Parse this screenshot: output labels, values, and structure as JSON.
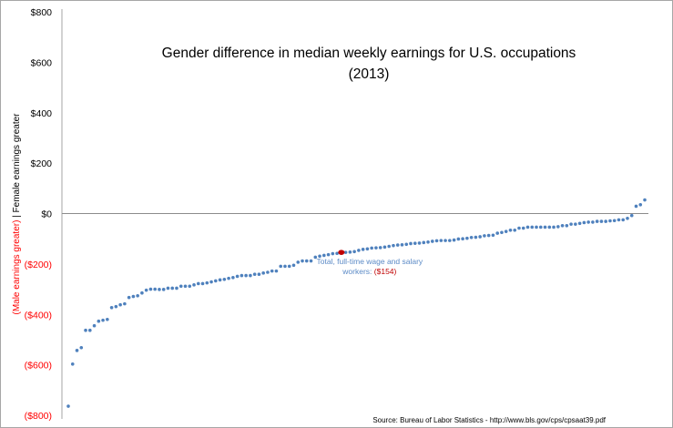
{
  "chart_data": {
    "type": "scatter",
    "title_line1": "Gender difference in median weekly earnings  for U.S. occupations",
    "title_line2": "(2013)",
    "ylabel_male": "(Male earnings greater)",
    "ylabel_sep": " | ",
    "ylabel_female": "Female earnings greater",
    "ylim": [
      -800,
      800
    ],
    "yticks": [
      800,
      600,
      400,
      200,
      0,
      -200,
      -400,
      -600,
      -800
    ],
    "ytick_labels": [
      "$800",
      "$600",
      "$400",
      "$200",
      "$0",
      "($200)",
      "($400)",
      "($600)",
      "($800)"
    ],
    "grid": false,
    "values": [
      -764,
      -597,
      -543,
      -532,
      -463,
      -463,
      -445,
      -427,
      -423,
      -420,
      -373,
      -369,
      -362,
      -358,
      -333,
      -329,
      -326,
      -315,
      -304,
      -300,
      -300,
      -301,
      -301,
      -296,
      -296,
      -296,
      -288,
      -288,
      -288,
      -283,
      -278,
      -278,
      -275,
      -271,
      -267,
      -263,
      -261,
      -257,
      -254,
      -249,
      -246,
      -246,
      -246,
      -241,
      -241,
      -236,
      -233,
      -228,
      -228,
      -209,
      -209,
      -209,
      -205,
      -193,
      -188,
      -188,
      -188,
      -173,
      -169,
      -166,
      -163,
      -159,
      -158,
      -154,
      -154,
      -153,
      -151,
      -146,
      -142,
      -140,
      -137,
      -136,
      -135,
      -133,
      -130,
      -127,
      -125,
      -124,
      -122,
      -119,
      -118,
      -117,
      -115,
      -113,
      -110,
      -108,
      -107,
      -107,
      -107,
      -105,
      -101,
      -100,
      -98,
      -95,
      -94,
      -92,
      -88,
      -87,
      -86,
      -78,
      -75,
      -71,
      -66,
      -66,
      -58,
      -58,
      -54,
      -54,
      -54,
      -54,
      -54,
      -54,
      -54,
      -52,
      -48,
      -48,
      -42,
      -42,
      -39,
      -36,
      -34,
      -34,
      -31,
      -31,
      -31,
      -29,
      -28,
      -25,
      -25,
      -19,
      -8,
      29,
      35,
      54
    ],
    "highlight": {
      "value": -154,
      "label_line1": "Total, full-time wage and salary",
      "label_line2_prefix": "workers: ",
      "label_value": "($154)"
    },
    "colors": {
      "points": "#4f81bd",
      "highlight": "#c00000",
      "negative_labels": "#ff0000",
      "annotation": "#5b8ac6"
    },
    "source": "Source: Bureau of Labor Statistics - http://www.bls.gov/cps/cpsaat39.pdf"
  }
}
